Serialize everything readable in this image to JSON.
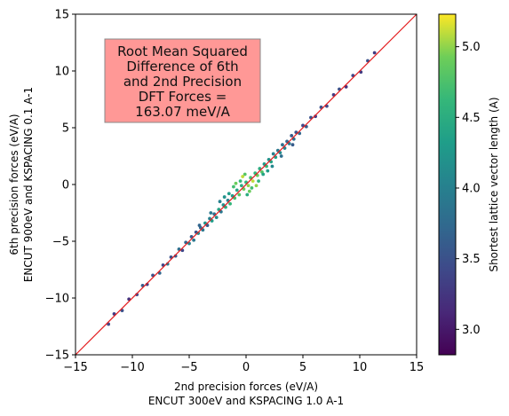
{
  "chart_data": {
    "type": "scatter",
    "xlabel_lines": [
      "2nd precision forces (eV/A)",
      "ENCUT 300eV and KSPACING 1.0 A-1"
    ],
    "ylabel_lines": [
      "6th precision forces (eV/A)",
      "ENCUT 900eV and KSPACING 0.1 A-1"
    ],
    "xlim": [
      -15,
      15
    ],
    "ylim": [
      -15,
      15
    ],
    "xticks": [
      -15,
      -10,
      -5,
      0,
      5,
      10,
      15
    ],
    "yticks": [
      -15,
      -10,
      -5,
      0,
      5,
      10,
      15
    ],
    "xtick_labels": [
      "−15",
      "−10",
      "−5",
      "0",
      "5",
      "10",
      "15"
    ],
    "ytick_labels": [
      "−15",
      "−10",
      "−5",
      "0",
      "5",
      "10",
      "15"
    ],
    "grid": false,
    "reference_line": {
      "from": [
        -15,
        -15
      ],
      "to": [
        15,
        15
      ],
      "color": "#e31a1c"
    },
    "annotation": {
      "lines": [
        "Root Mean Squared",
        "Difference of 6th",
        "and 2nd Precision",
        "DFT Forces =",
        "163.07 meV/A"
      ],
      "box_color": "#ff9896",
      "placement": "top-left"
    },
    "colorbar": {
      "label": "Shortest lattice vector length (A)",
      "colormap": "viridis",
      "range": [
        2.82,
        5.23
      ],
      "ticks": [
        3.0,
        3.5,
        4.0,
        4.5,
        5.0
      ],
      "tick_labels": [
        "3.0",
        "3.5",
        "4.0",
        "4.5",
        "5.0"
      ]
    },
    "points": [
      [
        -12.1,
        -12.3,
        3.4
      ],
      [
        -11.6,
        -11.4,
        3.3
      ],
      [
        -10.9,
        -11.1,
        3.5
      ],
      [
        -10.3,
        -10.1,
        3.2
      ],
      [
        -9.6,
        -9.7,
        3.4
      ],
      [
        -9.1,
        -8.9,
        3.6
      ],
      [
        -8.7,
        -8.8,
        3.3
      ],
      [
        -8.2,
        -8.0,
        3.5
      ],
      [
        -7.6,
        -7.8,
        3.7
      ],
      [
        -7.3,
        -7.1,
        3.4
      ],
      [
        -6.9,
        -7.0,
        3.9
      ],
      [
        -6.6,
        -6.4,
        3.5
      ],
      [
        -6.2,
        -6.3,
        3.6
      ],
      [
        -5.9,
        -5.7,
        3.8
      ],
      [
        -5.6,
        -5.8,
        3.4
      ],
      [
        -5.3,
        -5.1,
        3.7
      ],
      [
        -5.0,
        -5.2,
        4.0
      ],
      [
        -4.8,
        -4.6,
        3.6
      ],
      [
        -4.6,
        -4.9,
        3.9
      ],
      [
        -4.4,
        -4.2,
        3.5
      ],
      [
        -4.2,
        -4.3,
        4.1
      ],
      [
        -4.0,
        -3.8,
        3.7
      ],
      [
        -3.8,
        -4.0,
        3.9
      ],
      [
        -3.6,
        -3.4,
        4.2
      ],
      [
        -3.4,
        -3.6,
        3.6
      ],
      [
        -3.2,
        -3.0,
        4.0
      ],
      [
        -3.0,
        -3.2,
        4.3
      ],
      [
        -2.8,
        -2.6,
        3.8
      ],
      [
        -2.6,
        -2.9,
        4.1
      ],
      [
        -2.4,
        -2.2,
        4.4
      ],
      [
        -2.2,
        -2.4,
        3.9
      ],
      [
        -2.0,
        -1.8,
        4.2
      ],
      [
        -1.8,
        -2.0,
        4.5
      ],
      [
        -1.6,
        -1.4,
        4.0
      ],
      [
        -1.4,
        -1.7,
        4.6
      ],
      [
        -1.2,
        -1.0,
        4.3
      ],
      [
        -1.0,
        -1.2,
        4.7
      ],
      [
        -0.8,
        -0.5,
        4.4
      ],
      [
        -0.6,
        -0.9,
        4.8
      ],
      [
        -0.4,
        -0.1,
        4.5
      ],
      [
        -0.2,
        -0.4,
        4.9
      ],
      [
        0.0,
        0.2,
        4.6
      ],
      [
        0.2,
        -0.1,
        5.0
      ],
      [
        0.4,
        0.6,
        4.7
      ],
      [
        0.6,
        0.3,
        5.1
      ],
      [
        0.8,
        1.0,
        4.6
      ],
      [
        1.0,
        0.8,
        4.9
      ],
      [
        1.2,
        1.4,
        4.5
      ],
      [
        1.4,
        1.1,
        4.8
      ],
      [
        1.6,
        1.8,
        4.3
      ],
      [
        1.8,
        1.6,
        4.6
      ],
      [
        2.0,
        2.2,
        4.2
      ],
      [
        2.2,
        2.0,
        4.4
      ],
      [
        2.4,
        2.7,
        4.0
      ],
      [
        2.6,
        2.4,
        4.3
      ],
      [
        2.8,
        3.0,
        3.9
      ],
      [
        3.0,
        2.8,
        4.1
      ],
      [
        3.2,
        3.5,
        3.8
      ],
      [
        3.4,
        3.2,
        4.0
      ],
      [
        3.6,
        3.8,
        3.7
      ],
      [
        3.8,
        3.6,
        3.9
      ],
      [
        4.0,
        4.3,
        3.6
      ],
      [
        4.2,
        4.0,
        3.8
      ],
      [
        4.4,
        4.6,
        3.5
      ],
      [
        4.7,
        4.5,
        3.7
      ],
      [
        5.0,
        5.2,
        3.4
      ],
      [
        5.3,
        5.1,
        3.6
      ],
      [
        5.7,
        5.9,
        3.5
      ],
      [
        6.1,
        6.0,
        3.3
      ],
      [
        6.6,
        6.8,
        3.5
      ],
      [
        7.1,
        6.9,
        3.4
      ],
      [
        7.7,
        7.9,
        3.3
      ],
      [
        8.2,
        8.4,
        3.5
      ],
      [
        8.8,
        8.6,
        3.2
      ],
      [
        9.4,
        9.6,
        3.4
      ],
      [
        10.1,
        9.9,
        3.3
      ],
      [
        10.7,
        10.9,
        3.5
      ],
      [
        11.3,
        11.6,
        3.3
      ],
      [
        -0.5,
        0.3,
        4.6
      ],
      [
        0.5,
        -0.3,
        4.7
      ],
      [
        -1.5,
        -0.8,
        4.3
      ],
      [
        1.5,
        0.9,
        4.4
      ],
      [
        -0.9,
        0.1,
        4.9
      ],
      [
        0.9,
        -0.1,
        5.0
      ],
      [
        -2.3,
        -1.5,
        4.0
      ],
      [
        2.3,
        1.6,
        4.1
      ],
      [
        -0.1,
        0.9,
        4.8
      ],
      [
        0.1,
        -0.9,
        4.5
      ],
      [
        -1.1,
        -0.2,
        4.7
      ],
      [
        1.1,
        0.3,
        4.6
      ],
      [
        -3.1,
        -2.5,
        3.9
      ],
      [
        3.1,
        2.5,
        3.8
      ],
      [
        -1.9,
        -1.1,
        4.2
      ],
      [
        1.9,
        1.2,
        4.3
      ],
      [
        -0.3,
        0.7,
        5.1
      ],
      [
        0.3,
        -0.6,
        4.9
      ],
      [
        -4.1,
        -3.6,
        3.7
      ],
      [
        4.1,
        3.5,
        3.6
      ]
    ]
  }
}
